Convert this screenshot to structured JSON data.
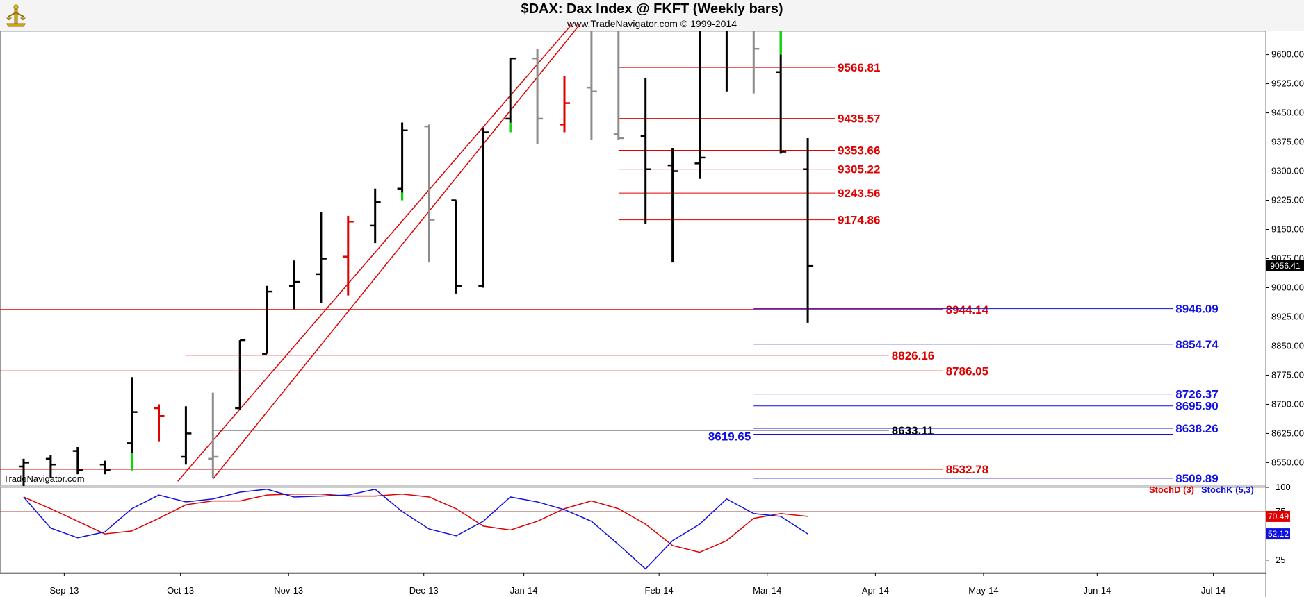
{
  "header": {
    "title": "$DAX:  Dax Index @ FKFT  (Weekly bars)",
    "subtitle": "www.TradeNavigator.com © 1999-2014"
  },
  "watermark": "TradeNavigator.com",
  "chart_data": {
    "type": "ohlc",
    "price_axis": {
      "ylim": [
        8490,
        9660
      ],
      "ticks": [
        "9600.00",
        "9525.00",
        "9450.00",
        "9375.00",
        "9300.00",
        "9225.00",
        "9150.00",
        "9075.00",
        "9000.00",
        "8925.00",
        "8850.00",
        "8775.00",
        "8700.00",
        "8625.00",
        "8550.00"
      ],
      "last_price_label": "9056.41",
      "last_price": 9056.41
    },
    "x_axis": {
      "labels": [
        "Sep-13",
        "Oct-13",
        "Nov-13",
        "Dec-13",
        "Jan-14",
        "Feb-14",
        "Mar-14",
        "Apr-14",
        "May-14",
        "Jun-14",
        "Jul-14"
      ],
      "label_weeks": [
        1.5,
        5.8,
        9.8,
        14.8,
        18.5,
        23.5,
        27.5,
        31.5,
        35.5,
        39.7,
        44.0
      ]
    },
    "bars": [
      {
        "w": 0,
        "o": 8540,
        "h": 8560,
        "l": 8490,
        "c": 8550,
        "color": "black"
      },
      {
        "w": 1,
        "o": 8560,
        "h": 8570,
        "l": 8510,
        "c": 8545,
        "color": "black"
      },
      {
        "w": 2,
        "o": 8580,
        "h": 8590,
        "l": 8520,
        "c": 8530,
        "color": "black"
      },
      {
        "w": 3,
        "o": 8545,
        "h": 8555,
        "l": 8520,
        "c": 8530,
        "color": "black"
      },
      {
        "w": 4,
        "o": 8600,
        "h": 8770,
        "l": 8530,
        "c": 8680,
        "color": "black",
        "low_tail": [
          8530,
          8575
        ]
      },
      {
        "w": 5,
        "o": 8690,
        "h": 8700,
        "l": 8605,
        "c": 8670,
        "color": "red"
      },
      {
        "w": 6,
        "o": 8565,
        "h": 8695,
        "l": 8545,
        "c": 8625,
        "color": "black"
      },
      {
        "w": 7,
        "o": 8560,
        "h": 8730,
        "l": 8510,
        "c": 8565,
        "color": "gray"
      },
      {
        "w": 8,
        "o": 8690,
        "h": 8865,
        "l": 8685,
        "c": 8865,
        "color": "black"
      },
      {
        "w": 9,
        "o": 8830,
        "h": 9005,
        "l": 8830,
        "c": 8990,
        "color": "black"
      },
      {
        "w": 10,
        "o": 9005,
        "h": 9070,
        "l": 8945,
        "c": 9015,
        "color": "black"
      },
      {
        "w": 11,
        "o": 9035,
        "h": 9195,
        "l": 8960,
        "c": 9075,
        "color": "black"
      },
      {
        "w": 12,
        "o": 9080,
        "h": 9185,
        "l": 8980,
        "c": 9170,
        "color": "red"
      },
      {
        "w": 13,
        "o": 9160,
        "h": 9255,
        "l": 9115,
        "c": 9220,
        "color": "black"
      },
      {
        "w": 14,
        "o": 9255,
        "h": 9425,
        "l": 9225,
        "c": 9405,
        "color": "black",
        "low_tail": [
          9225,
          9245
        ]
      },
      {
        "w": 15,
        "o": 9415,
        "h": 9420,
        "l": 9065,
        "c": 9175,
        "color": "gray"
      },
      {
        "w": 16,
        "o": 9225,
        "h": 9225,
        "l": 8985,
        "c": 9005,
        "color": "black"
      },
      {
        "w": 17,
        "o": 9005,
        "h": 9410,
        "l": 9000,
        "c": 9400,
        "color": "black"
      },
      {
        "w": 18,
        "o": 9435,
        "h": 9590,
        "l": 9400,
        "c": 9590,
        "color": "black",
        "low_tail": [
          9400,
          9425
        ]
      },
      {
        "w": 19,
        "o": 9590,
        "h": 9615,
        "l": 9370,
        "c": 9435,
        "color": "gray"
      },
      {
        "w": 20,
        "o": 9420,
        "h": 9545,
        "l": 9400,
        "c": 9475,
        "color": "red"
      },
      {
        "w": 21,
        "o": 9515,
        "h": 9700,
        "l": 9380,
        "c": 9505,
        "color": "gray"
      },
      {
        "w": 22,
        "o": 9395,
        "h": 9700,
        "l": 9380,
        "c": 9385,
        "color": "gray"
      },
      {
        "w": 23,
        "o": 9390,
        "h": 9540,
        "l": 9165,
        "c": 9305,
        "color": "black"
      },
      {
        "w": 24,
        "o": 9315,
        "h": 9360,
        "l": 9065,
        "c": 9300,
        "color": "black"
      },
      {
        "w": 25,
        "o": 9320,
        "h": 9700,
        "l": 9280,
        "c": 9335,
        "color": "black"
      },
      {
        "w": 26,
        "o": 9700,
        "h": 9700,
        "l": 9505,
        "c": 9700,
        "color": "black"
      },
      {
        "w": 27,
        "o": 9700,
        "h": 9700,
        "l": 9500,
        "c": 9615,
        "color": "gray"
      },
      {
        "w": 28,
        "o": 9555,
        "h": 9700,
        "l": 9345,
        "c": 9350,
        "color": "black",
        "high_tail": [
          9600,
          9700
        ]
      },
      {
        "w": 29,
        "o": 9305,
        "h": 9385,
        "l": 8910,
        "c": 9056,
        "color": "black"
      }
    ],
    "red_levels": [
      {
        "value": 9566.81,
        "label": "9566.81",
        "from_week": 22,
        "to_week": 30
      },
      {
        "value": 9435.57,
        "label": "9435.57",
        "from_week": 22,
        "to_week": 30
      },
      {
        "value": 9353.66,
        "label": "9353.66",
        "from_week": 22,
        "to_week": 30
      },
      {
        "value": 9305.22,
        "label": "9305.22",
        "from_week": 22,
        "to_week": 30
      },
      {
        "value": 9243.56,
        "label": "9243.56",
        "from_week": 22,
        "to_week": 30
      },
      {
        "value": 9174.86,
        "label": "9174.86",
        "from_week": 22,
        "to_week": 30
      },
      {
        "value": 8944.14,
        "label": "8944.14",
        "from_week": -2,
        "to_week": 34
      },
      {
        "value": 8826.16,
        "label": "8826.16",
        "from_week": 6,
        "to_week": 32
      },
      {
        "value": 8786.05,
        "label": "8786.05",
        "from_week": -2,
        "to_week": 34
      },
      {
        "value": 8532.78,
        "label": "8532.78",
        "from_week": -2,
        "to_week": 34
      }
    ],
    "black_levels": [
      {
        "value": 8633.11,
        "label": "8633.11",
        "from_week": 7,
        "to_week": 32
      }
    ],
    "blue_levels": [
      {
        "value": 8946.09,
        "label": "8946.09",
        "from_week": 27,
        "to_week": 42.5
      },
      {
        "value": 8854.74,
        "label": "8854.74",
        "from_week": 27,
        "to_week": 42.5
      },
      {
        "value": 8726.37,
        "label": "8726.37",
        "from_week": 27,
        "to_week": 42.5
      },
      {
        "value": 8695.9,
        "label": "8695.90",
        "from_week": 27,
        "to_week": 42.5
      },
      {
        "value": 8638.26,
        "label": "8638.26",
        "from_week": 27,
        "to_week": 42.5
      },
      {
        "value": 8623.0,
        "label": "",
        "from_week": 27,
        "to_week": 42.5
      },
      {
        "value": 8509.89,
        "label": "8509.89",
        "from_week": 27,
        "to_week": 42.5
      }
    ],
    "left_blue_label": {
      "value": 8619.65,
      "label": "8619.65"
    },
    "trendlines": [
      {
        "w1": 5.7,
        "p1": 8502,
        "w2": 20.3,
        "p2": 9680
      },
      {
        "w1": 7.0,
        "p1": 8508,
        "w2": 20.6,
        "p2": 9680
      }
    ],
    "stochastic": {
      "ylim": [
        12,
        100
      ],
      "ticks": [
        "100",
        "75",
        "25"
      ],
      "tick_values": [
        100,
        75,
        25
      ],
      "legend": [
        {
          "name": "StochD (3)",
          "color": "#e00000"
        },
        {
          "name": "StochK (5,3)",
          "color": "#1010e0"
        }
      ],
      "stochD_label": "70.49",
      "stochK_label": "52.12",
      "stochD": [
        90,
        78,
        65,
        52,
        55,
        68,
        82,
        86,
        86,
        92,
        93,
        93,
        91,
        91,
        93,
        90,
        78,
        60,
        56,
        65,
        78,
        86,
        78,
        62,
        40,
        33,
        45,
        68,
        73,
        70
      ],
      "stochK": [
        90,
        58,
        48,
        54,
        78,
        92,
        85,
        88,
        95,
        98,
        90,
        91,
        92,
        98,
        75,
        57,
        50,
        65,
        90,
        85,
        77,
        65,
        41,
        16,
        45,
        62,
        88,
        73,
        70,
        52
      ]
    }
  }
}
